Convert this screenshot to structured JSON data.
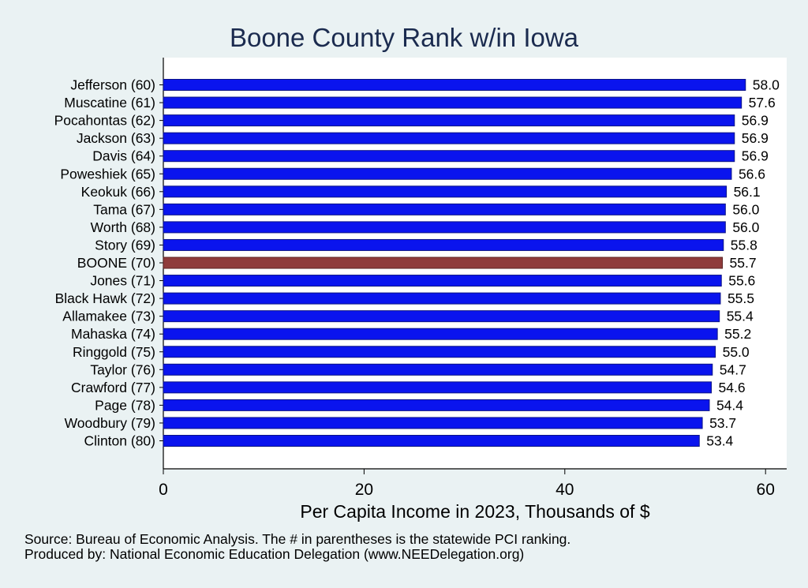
{
  "chart_data": {
    "type": "bar",
    "orientation": "horizontal",
    "title": "Boone County Rank w/in Iowa",
    "xlabel": "Per Capita Income in 2023, Thousands of $",
    "ylabel": "",
    "xlim": [
      0,
      62
    ],
    "xticks": [
      "0",
      "20",
      "40",
      "60"
    ],
    "grid": false,
    "categories": [
      "Jefferson (60)",
      "Muscatine (61)",
      "Pocahontas (62)",
      "Jackson (63)",
      "Davis (64)",
      "Poweshiek (65)",
      "Keokuk (66)",
      "Tama (67)",
      "Worth (68)",
      "Story (69)",
      "BOONE (70)",
      "Jones (71)",
      "Black Hawk (72)",
      "Allamakee (73)",
      "Mahaska (74)",
      "Ringgold (75)",
      "Taylor (76)",
      "Crawford (77)",
      "Page (78)",
      "Woodbury (79)",
      "Clinton (80)"
    ],
    "values": [
      58.0,
      57.6,
      56.9,
      56.9,
      56.9,
      56.6,
      56.1,
      56.0,
      56.0,
      55.8,
      55.7,
      55.6,
      55.5,
      55.4,
      55.2,
      55.0,
      54.7,
      54.6,
      54.4,
      53.7,
      53.4
    ],
    "value_labels": [
      "58.0",
      "57.6",
      "56.9",
      "56.9",
      "56.9",
      "56.6",
      "56.1",
      "56.0",
      "56.0",
      "55.8",
      "55.7",
      "55.6",
      "55.5",
      "55.4",
      "55.2",
      "55.0",
      "54.7",
      "54.6",
      "54.4",
      "53.7",
      "53.4"
    ],
    "highlight_category": "BOONE (70)",
    "colors": {
      "bar": "#0a14ee",
      "bar_edge": "#0c1486",
      "highlight": "#8f3b3b",
      "highlight_edge": "#5c2424",
      "plot_background": "#ffffff",
      "page_background": "#eaf2f3",
      "title": "#1b2b4f"
    }
  },
  "notes": {
    "source": "Source: Bureau of Economic Analysis. The # in parentheses is the statewide PCI ranking.",
    "producer": "Produced by: National Economic Education Delegation (www.NEEDelegation.org)"
  }
}
